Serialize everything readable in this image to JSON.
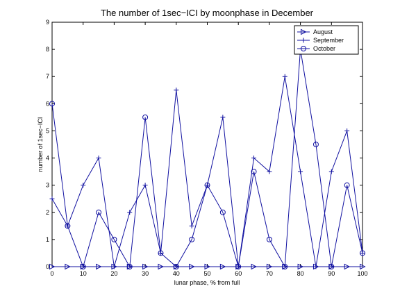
{
  "chart_data": {
    "type": "line",
    "title": "The number of 1sec−ICI by moonphase in December",
    "xlabel": "lunar phase, % from full",
    "ylabel": "number of 1sec−ICI",
    "xlim": [
      0,
      100
    ],
    "ylim": [
      0,
      9
    ],
    "x_ticks": [
      "0",
      "10",
      "20",
      "30",
      "40",
      "50",
      "60",
      "70",
      "80",
      "90",
      "100"
    ],
    "y_ticks": [
      "0",
      "1",
      "2",
      "3",
      "4",
      "5",
      "6",
      "7",
      "8",
      "9"
    ],
    "grid": false,
    "legend_position": "top-right",
    "line_color": "#1010a0",
    "x": [
      0,
      5,
      10,
      15,
      20,
      25,
      30,
      35,
      40,
      45,
      50,
      55,
      60,
      65,
      70,
      75,
      80,
      85,
      90,
      95,
      100
    ],
    "series": [
      {
        "name": "August",
        "marker": "triangle-right",
        "values": [
          0,
          0,
          0,
          0,
          0,
          0,
          0,
          0,
          0,
          0,
          0,
          0,
          0,
          0,
          0,
          0,
          0,
          0,
          0,
          0,
          0
        ]
      },
      {
        "name": "September",
        "marker": "plus",
        "values": [
          2.5,
          1.5,
          3,
          4,
          0,
          2,
          3,
          0.5,
          6.5,
          1.5,
          3,
          5.5,
          0,
          4,
          3.5,
          7,
          3.5,
          0,
          3.5,
          5,
          0.5
        ]
      },
      {
        "name": "October",
        "marker": "circle",
        "values": [
          6,
          1.5,
          0,
          2,
          1,
          0,
          5.5,
          0.5,
          0,
          1,
          3,
          2,
          0,
          3.5,
          1,
          0,
          8,
          4.5,
          0,
          3,
          0.5
        ]
      }
    ]
  }
}
